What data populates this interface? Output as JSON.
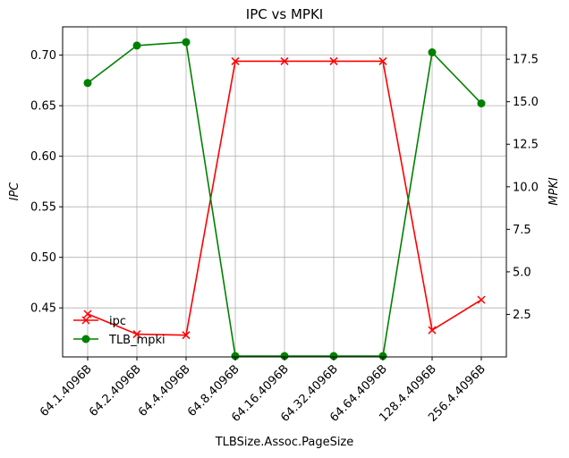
{
  "chart_data": {
    "type": "line",
    "title": "IPC vs MPKI",
    "xlabel": "TLBSize.Assoc.PageSize",
    "ylabel_left": "IPC",
    "ylabel_right": "MPKI",
    "categories": [
      "64.1.4096B",
      "64.2.4096B",
      "64.4.4096B",
      "64.8.4096B",
      "64.16.4096B",
      "64.32.4096B",
      "64.64.4096B",
      "128.4.4096B",
      "256.4.4096B"
    ],
    "left_axis": {
      "ylim": [
        0.4015,
        0.728
      ],
      "ticks": [
        0.45,
        0.5,
        0.55,
        0.6,
        0.65,
        0.7
      ],
      "tick_labels": [
        "0.45",
        "0.50",
        "0.55",
        "0.60",
        "0.65",
        "0.70"
      ]
    },
    "right_axis": {
      "ylim": [
        0.0,
        19.4
      ],
      "ticks": [
        2.5,
        5.0,
        7.5,
        10.0,
        12.5,
        15.0,
        17.5
      ],
      "tick_labels": [
        "2.5",
        "5.0",
        "7.5",
        "10.0",
        "12.5",
        "15.0",
        "17.5"
      ]
    },
    "grid": true,
    "legend_position": "lower-left",
    "series": [
      {
        "name": "ipc",
        "axis": "left",
        "color": "#ff0000",
        "marker": "x",
        "values": [
          0.444,
          0.424,
          0.423,
          0.694,
          0.694,
          0.694,
          0.694,
          0.428,
          0.458
        ]
      },
      {
        "name": "TLB_mpki",
        "axis": "right",
        "color": "#008000",
        "marker": "o",
        "values": [
          16.1,
          18.3,
          18.5,
          0.05,
          0.05,
          0.05,
          0.05,
          17.9,
          14.9
        ]
      }
    ]
  }
}
